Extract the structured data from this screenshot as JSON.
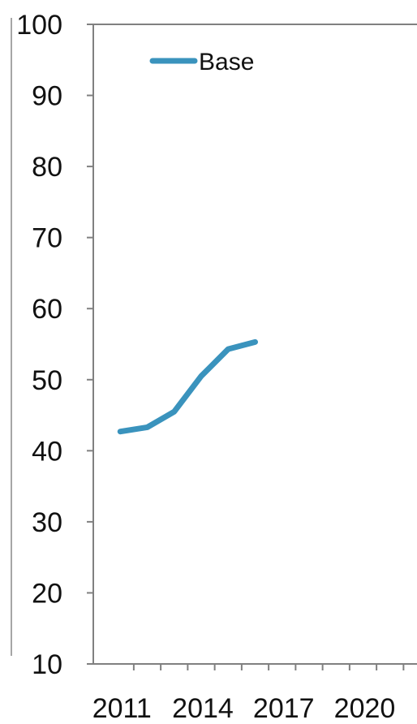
{
  "chart_data": {
    "type": "line",
    "title": "",
    "xlabel": "",
    "ylabel": "",
    "x": [
      2011,
      2012,
      2013,
      2014,
      2015,
      2016
    ],
    "series": [
      {
        "name": "Base",
        "color": "#3a93bd",
        "values": [
          42.7,
          43.3,
          45.5,
          50.5,
          54.3,
          55.3
        ]
      }
    ],
    "xlim": [
      2010,
      2022
    ],
    "ylim": [
      10,
      100
    ],
    "x_ticks": [
      2011,
      2014,
      2017,
      2020
    ],
    "x_tick_labels": [
      "2011",
      "2014",
      "2017",
      "2020"
    ],
    "y_ticks": [
      10,
      20,
      30,
      40,
      50,
      60,
      70,
      80,
      90,
      100
    ],
    "y_tick_labels": [
      "10",
      "20",
      "30",
      "40",
      "50",
      "60",
      "70",
      "80",
      "90",
      "100"
    ],
    "grid": false,
    "legend": {
      "position": "top-left",
      "labels": [
        "Base"
      ]
    },
    "colors": {
      "axis": "#808080",
      "rule": "#a6a6a6",
      "text": "#111111"
    }
  }
}
